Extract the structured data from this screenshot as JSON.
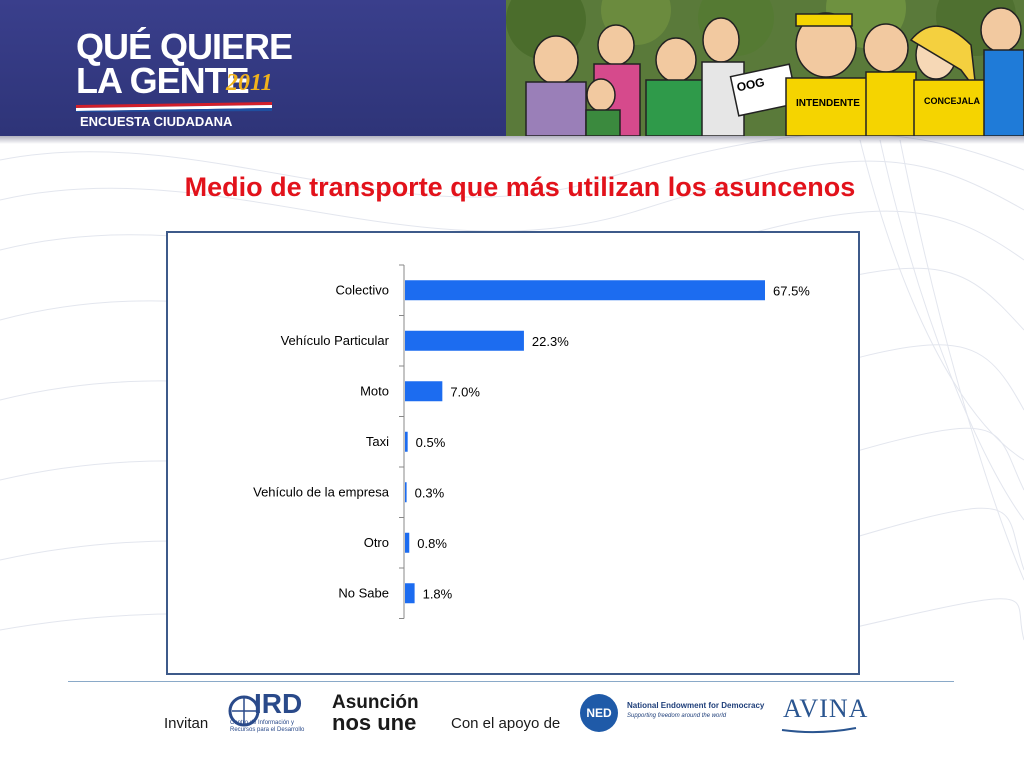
{
  "header": {
    "logo_line1": "QUÉ QUIERE",
    "logo_line2": "LA GENTE",
    "logo_year": "2011",
    "logo_subtitle": "ENCUESTA CIUDADANA",
    "cartoon_signs": [
      "OOG",
      "INTENDENTE",
      "CONCEJALA"
    ]
  },
  "title": "Medio de transporte que más utilizan los asuncenos",
  "chart_data": {
    "type": "bar",
    "orientation": "horizontal",
    "categories": [
      "Colectivo",
      "Vehículo Particular",
      "Moto",
      "Taxi",
      "Vehículo de la empresa",
      "Otro",
      "No Sabe"
    ],
    "values": [
      67.5,
      22.3,
      7.0,
      0.5,
      0.3,
      0.8,
      1.8
    ],
    "value_labels": [
      "67.5%",
      "22.3%",
      "7.0%",
      "0.5%",
      "0.3%",
      "0.8%",
      "1.8%"
    ],
    "xlim": [
      0,
      67.5
    ],
    "grid": false,
    "bar_color": "#1c6cf0"
  },
  "footer": {
    "invitan": "Invitan",
    "ird_name": "IRD",
    "ird_sub": "Centro de Información y Recursos para el Desarrollo",
    "asuncion_line1": "Asunción",
    "asuncion_line2": "nos une",
    "apoyo": "Con el apoyo de",
    "ned_acronym": "NED",
    "ned_name": "National Endowment for Democracy",
    "ned_sub": "Supporting freedom around the world",
    "avina": "AVINA"
  },
  "colors": {
    "header_bg": "#2e3478",
    "title": "#e2121b",
    "chart_border": "#3d5a8a",
    "bar": "#1c6cf0"
  }
}
